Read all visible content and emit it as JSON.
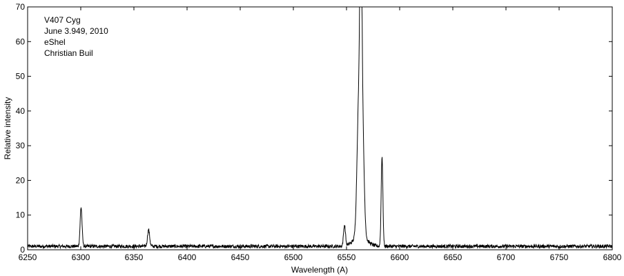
{
  "chart_data": {
    "type": "line",
    "title": "",
    "xlabel": "Wavelength (A)",
    "ylabel": "Relative intensity",
    "xlim": [
      6250,
      6800
    ],
    "ylim": [
      0,
      70
    ],
    "xticks": [
      6250,
      6300,
      6350,
      6400,
      6450,
      6500,
      6550,
      6600,
      6650,
      6700,
      6750,
      6800
    ],
    "yticks": [
      0,
      10,
      20,
      30,
      40,
      50,
      60,
      70
    ],
    "grid": false,
    "legend": "none",
    "annotations": [
      "V407 Cyg",
      "June 3.949, 2010",
      "eShel",
      "Christian Buil"
    ],
    "series": [
      {
        "color": "#000000",
        "continuum": 1.0,
        "noise_amplitude": 0.5,
        "lines": [
          {
            "center": 6300.3,
            "peak": 12.2,
            "width": 0.9
          },
          {
            "center": 6363.8,
            "peak": 5.8,
            "width": 1.0
          },
          {
            "center": 6548.1,
            "peak": 7.0,
            "width": 0.9
          },
          {
            "center": 6561.5,
            "peak": 39.5,
            "width": 1.6
          },
          {
            "center": 6563.5,
            "peak": 67.5,
            "width": 0.9
          },
          {
            "center": 6565.0,
            "peak": 33.0,
            "width": 1.5
          },
          {
            "center": 6583.4,
            "peak": 27.0,
            "width": 0.8
          }
        ]
      }
    ]
  }
}
